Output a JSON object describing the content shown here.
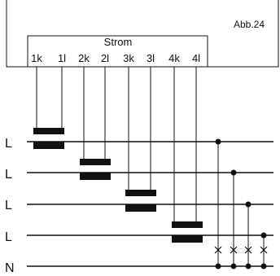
{
  "figure": {
    "label": "Abb.24",
    "block_title": "Strom",
    "terminals": [
      "1k",
      "1l",
      "2k",
      "2l",
      "3k",
      "3l",
      "4k",
      "4l"
    ],
    "line_labels": [
      "L",
      "L",
      "L",
      "L",
      "N"
    ]
  }
}
